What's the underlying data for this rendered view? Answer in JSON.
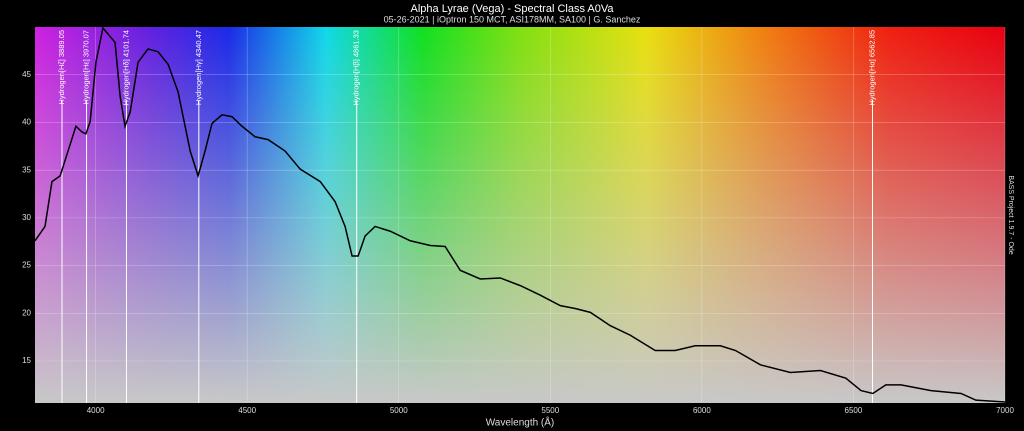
{
  "chart_data": {
    "type": "line",
    "title": "Alpha Lyrae (Vega) - Spectral Class A0Va",
    "subtitle": "05-26-2021 | iOptron 150 MCT, ASI178MM, SA100 | G. Sanchez",
    "x_label": "Wavelength (Å)",
    "side_note": "BASS Project 1.9.7 - Ode",
    "xlim": [
      3800,
      7000
    ],
    "ylim": [
      10.6,
      50
    ],
    "xticks": [
      4000,
      4500,
      5000,
      5500,
      6000,
      6500,
      7000
    ],
    "yticks": [
      15,
      20,
      25,
      30,
      35,
      40,
      45
    ],
    "grid": true,
    "series": [
      {
        "color": "#000000",
        "x": [
          3800,
          3833,
          3856,
          3883,
          3909,
          3935,
          3955,
          3968,
          3982,
          4001,
          4024,
          4064,
          4081,
          4097,
          4114,
          4140,
          4173,
          4206,
          4239,
          4272,
          4312,
          4338,
          4361,
          4384,
          4417,
          4450,
          4483,
          4526,
          4569,
          4625,
          4675,
          4741,
          4790,
          4823,
          4846,
          4866,
          4889,
          4922,
          4972,
          5038,
          5104,
          5153,
          5203,
          5269,
          5335,
          5401,
          5467,
          5533,
          5582,
          5632,
          5698,
          5764,
          5846,
          5912,
          5978,
          6061,
          6111,
          6193,
          6292,
          6391,
          6475,
          6525,
          6564,
          6607,
          6657,
          6756,
          6855,
          6904,
          7000
        ],
        "values": [
          27.6,
          29.1,
          33.8,
          34.4,
          37.0,
          39.6,
          39.0,
          38.8,
          40.1,
          46.3,
          49.9,
          48.4,
          42.7,
          39.6,
          41.1,
          46.3,
          47.7,
          47.4,
          46.1,
          43.2,
          37.0,
          34.4,
          37.0,
          39.9,
          40.8,
          40.6,
          39.6,
          38.5,
          38.2,
          37.0,
          35.1,
          33.8,
          31.7,
          29.1,
          26.0,
          26.0,
          28.1,
          29.1,
          28.6,
          27.6,
          27.1,
          27.0,
          24.5,
          23.6,
          23.7,
          22.9,
          21.9,
          20.8,
          20.5,
          20.1,
          18.7,
          17.7,
          16.1,
          16.1,
          16.6,
          16.6,
          16.1,
          14.6,
          13.8,
          14.0,
          13.2,
          11.9,
          11.6,
          12.5,
          12.5,
          11.9,
          11.6,
          10.9,
          10.7
        ]
      }
    ],
    "annotations": [
      {
        "x": 3889.05,
        "label": "Hydrogen[Hζ] 3889.05"
      },
      {
        "x": 3970.07,
        "label": "Hydrogen[Hε] 3970.07"
      },
      {
        "x": 4101.74,
        "label": "Hydrogen[Hδ] 4101.74"
      },
      {
        "x": 4340.47,
        "label": "Hydrogen[Hγ] 4340.47"
      },
      {
        "x": 4861.33,
        "label": "Hydrogen[Hβ] 4861.33"
      },
      {
        "x": 6562.85,
        "label": "Hydrogen[Hα] 6562.85"
      }
    ]
  }
}
